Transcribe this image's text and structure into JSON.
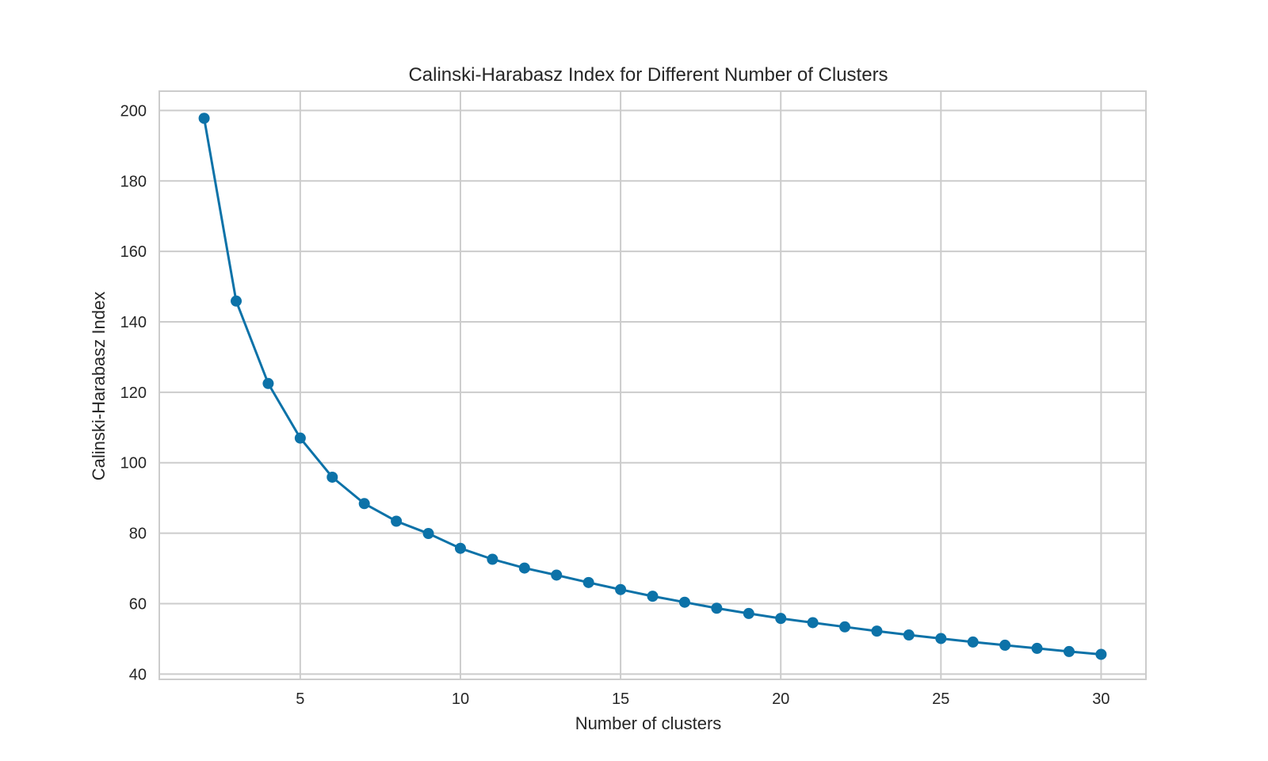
{
  "chart_data": {
    "type": "line",
    "title": "Calinski-Harabasz Index for Different Number of Clusters",
    "xlabel": "Number of clusters",
    "ylabel": "Calinski-Harabasz Index",
    "xlim": [
      0.6,
      31.4
    ],
    "ylim": [
      38.5,
      205.5
    ],
    "xticks": [
      5,
      10,
      15,
      20,
      25,
      30
    ],
    "yticks": [
      40,
      60,
      80,
      100,
      120,
      140,
      160,
      180,
      200
    ],
    "grid": true,
    "marker": "circle",
    "color": "#0c72a8",
    "series": [
      {
        "x": [
          2,
          3,
          4,
          5,
          6,
          7,
          8,
          9,
          10,
          11,
          12,
          13,
          14,
          15,
          16,
          17,
          18,
          19,
          20,
          21,
          22,
          23,
          24,
          25,
          26,
          27,
          28,
          29,
          30
        ],
        "values": [
          197.8,
          145.9,
          122.5,
          107.0,
          95.9,
          88.4,
          83.4,
          79.9,
          75.7,
          72.6,
          70.1,
          68.1,
          66.0,
          64.0,
          62.1,
          60.4,
          58.7,
          57.2,
          55.8,
          54.6,
          53.4,
          52.2,
          51.1,
          50.1,
          49.1,
          48.2,
          47.3,
          46.4,
          45.6
        ]
      }
    ]
  }
}
